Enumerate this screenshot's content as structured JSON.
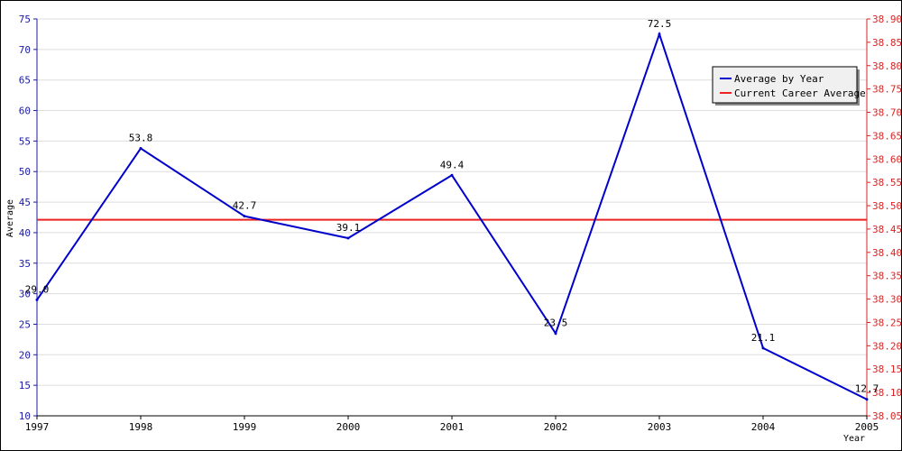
{
  "chart_data": {
    "type": "line",
    "title": "",
    "xlabel": "Year",
    "ylabel": "Average",
    "x": [
      "1997",
      "1998",
      "1999",
      "2000",
      "2001",
      "2002",
      "2003",
      "2004",
      "2005"
    ],
    "series": [
      {
        "name": "Average by Year",
        "color": "#0000cc",
        "axis": "left",
        "values": [
          29.0,
          53.8,
          42.7,
          39.1,
          49.4,
          23.5,
          72.5,
          21.1,
          12.7
        ],
        "labels": [
          "29.0",
          "53.8",
          "42.7",
          "39.1",
          "49.4",
          "23.5",
          "72.5",
          "21.1",
          "12.7"
        ]
      },
      {
        "name": "Current Career Average",
        "color": "#ee2222",
        "axis": "right",
        "value": 38.47
      }
    ],
    "y_left": {
      "range": [
        10,
        75
      ],
      "ticks": [
        "10",
        "15",
        "20",
        "25",
        "30",
        "35",
        "40",
        "45",
        "50",
        "55",
        "60",
        "65",
        "70",
        "75"
      ],
      "color": "#1a1aa6"
    },
    "y_right": {
      "range": [
        38.05,
        38.9
      ],
      "ticks": [
        "38.05",
        "38.10",
        "38.15",
        "38.20",
        "38.25",
        "38.30",
        "38.35",
        "38.40",
        "38.45",
        "38.50",
        "38.55",
        "38.60",
        "38.65",
        "38.70",
        "38.75",
        "38.80",
        "38.85",
        "38.90"
      ],
      "color": "#dd2222"
    },
    "grid": true,
    "legend": "top-right"
  }
}
